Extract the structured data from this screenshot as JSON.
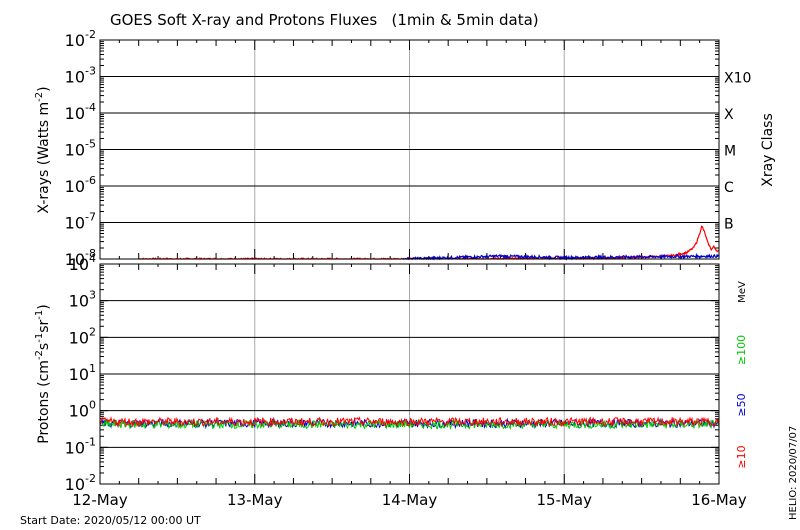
{
  "title": "GOES Soft X-ray and Protons Fluxes   (1min & 5min data)",
  "start_date": "Start Date: 2020/05/12 00:00 UT",
  "credit": "HELIO: 2020/07/07",
  "chart_data": [
    {
      "type": "line",
      "panel": "xray",
      "ylabel_main": "X-rays (Watts m",
      "ylabel_sup": "-2",
      "ylabel_close": ")",
      "yscale": "log",
      "ylim": [
        1e-08,
        0.01
      ],
      "ytick_exponents": [
        -2,
        -3,
        -4,
        -5,
        -6,
        -7,
        -8
      ],
      "class_label": "Xray Class",
      "class_ticks": [
        {
          "label": "X10",
          "at": 0.001
        },
        {
          "label": "X",
          "at": 0.0001
        },
        {
          "label": "M",
          "at": 1e-05
        },
        {
          "label": "C",
          "at": 1e-06
        },
        {
          "label": "B",
          "at": 1e-07
        }
      ],
      "grid": "horizontal solid lines at decades, vertical gray lines at day boundaries",
      "series": [
        {
          "color": "#ff0000",
          "description": "long-wavelength channel; near 1e-8 floor until ~15-May 10 UT, then elevated with peak ~8e-8 near 15-May 21 UT",
          "points": [
            [
              "2020-05-12T06:00",
              1e-08
            ],
            [
              "2020-05-13T19:00",
              1e-08
            ],
            [
              "2020-05-15T06:00",
              1.05e-08
            ],
            [
              "2020-05-15T10:00",
              1.1e-08
            ],
            [
              "2020-05-15T14:00",
              1.15e-08
            ],
            [
              "2020-05-15T17:00",
              1.25e-08
            ],
            [
              "2020-05-15T19:00",
              1.5e-08
            ],
            [
              "2020-05-15T20:00",
              2e-08
            ],
            [
              "2020-05-15T20:30",
              2.8e-08
            ],
            [
              "2020-05-15T21:00",
              5e-08
            ],
            [
              "2020-05-15T21:20",
              8e-08
            ],
            [
              "2020-05-15T21:45",
              5.5e-08
            ],
            [
              "2020-05-15T22:15",
              2.8e-08
            ],
            [
              "2020-05-15T22:50",
              1.8e-08
            ],
            [
              "2020-05-15T23:10",
              2.2e-08
            ],
            [
              "2020-05-15T23:40",
              1.7e-08
            ],
            [
              "2020-05-16T00:00",
              1.6e-08
            ]
          ]
        },
        {
          "color": "#0000cc",
          "description": "short-wavelength channel; at floor, slightly raised from ~14-May 14 UT onward",
          "points": [
            [
              "2020-05-13T23:00",
              1e-08
            ],
            [
              "2020-05-14T14:00",
              1.2e-08
            ],
            [
              "2020-05-15T00:00",
              1.1e-08
            ],
            [
              "2020-05-15T12:00",
              1.15e-08
            ],
            [
              "2020-05-16T00:00",
              1.2e-08
            ]
          ]
        }
      ]
    },
    {
      "type": "line",
      "panel": "protons",
      "ylabel_main": "Protons (cm",
      "ylabel_s1": "-2",
      "ylabel_mid1": "s",
      "ylabel_s2": "-1",
      "ylabel_mid2": "sr",
      "ylabel_s3": "-1",
      "ylabel_close": ")",
      "yscale": "log",
      "ylim": [
        0.01,
        10000
      ],
      "ytick_exponents": [
        4,
        3,
        2,
        1,
        0,
        -1,
        -2
      ],
      "dashed_threshold": 10,
      "energy_unit": "MeV",
      "energy_channels": [
        {
          "label": "≥100",
          "color": "#00cc00"
        },
        {
          "label": "≥50",
          "color": "#0000cc"
        },
        {
          "label": "≥10",
          "color": "#ff0000"
        }
      ],
      "series": [
        {
          "color": "#00cc00",
          "level": 0.42,
          "description": "≥100 MeV, background ~0.4"
        },
        {
          "color": "#0000cc",
          "level": 0.45,
          "description": "≥50 MeV, background ~0.45"
        },
        {
          "color": "#ff0000",
          "level": 0.5,
          "description": "≥10 MeV, background ~0.5"
        }
      ]
    }
  ],
  "x_axis": {
    "range": [
      "2020-05-12T00:00",
      "2020-05-16T00:00"
    ],
    "ticks": [
      "12-May",
      "13-May",
      "14-May",
      "15-May",
      "16-May"
    ]
  }
}
